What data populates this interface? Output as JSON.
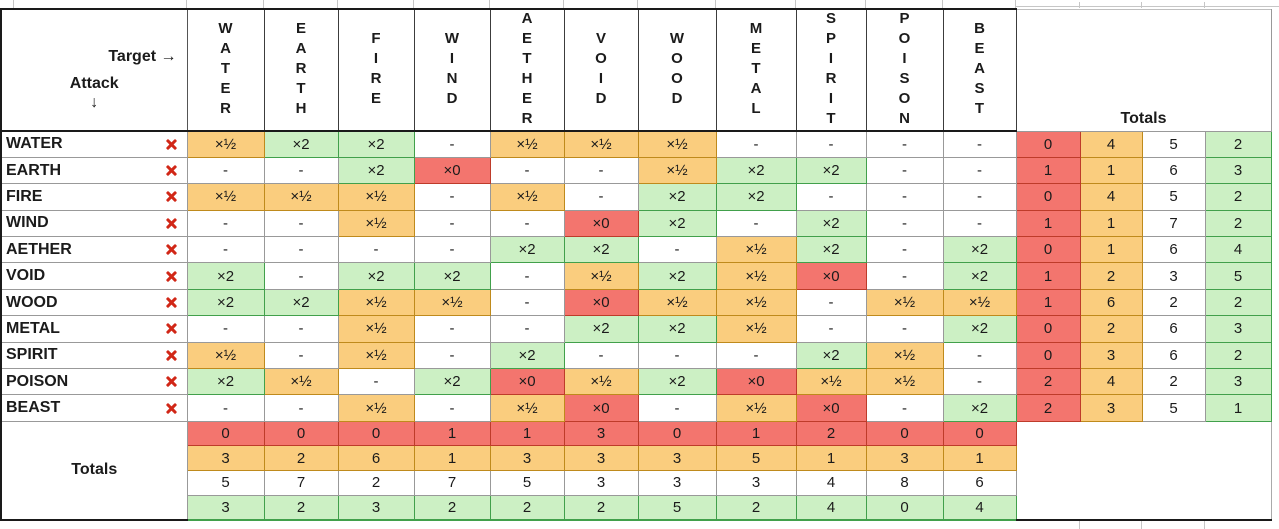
{
  "header": {
    "target_label": "Target →",
    "attack_label": "Attack",
    "attack_arrow": "↓",
    "columns": [
      "WATER",
      "EARTH",
      "FIRE",
      "WIND",
      "AETHER",
      "VOID",
      "WOOD",
      "METAL",
      "SPIRIT",
      "POISON",
      "BEAST"
    ],
    "totals_label": "Totals"
  },
  "value_colors": {
    "x0_fill": "#f3756e",
    "xhalf_fill": "#facd7e",
    "neutral_fill": "#ffffff",
    "x2_fill": "#ccf0c4",
    "remove_icon_color": "#d12717"
  },
  "totals_column_colors": [
    "#f3756e",
    "#facd7e",
    "#ffffff",
    "#ccf0c4"
  ],
  "matrix": {
    "rows": [
      {
        "attack": "WATER",
        "remove_icon": "x",
        "cells": [
          "×½",
          "×2",
          "×2",
          "-",
          "×½",
          "×½",
          "×½",
          "-",
          "-",
          "-",
          "-"
        ],
        "totals": [
          0,
          4,
          5,
          2
        ]
      },
      {
        "attack": "EARTH",
        "remove_icon": "x",
        "cells": [
          "-",
          "-",
          "×2",
          "×0",
          "-",
          "-",
          "×½",
          "×2",
          "×2",
          "-",
          "-"
        ],
        "totals": [
          1,
          1,
          6,
          3
        ]
      },
      {
        "attack": "FIRE",
        "remove_icon": "x",
        "cells": [
          "×½",
          "×½",
          "×½",
          "-",
          "×½",
          "-",
          "×2",
          "×2",
          "-",
          "-",
          "-"
        ],
        "totals": [
          0,
          4,
          5,
          2
        ]
      },
      {
        "attack": "WIND",
        "remove_icon": "x",
        "cells": [
          "-",
          "-",
          "×½",
          "-",
          "-",
          "×0",
          "×2",
          "-",
          "×2",
          "-",
          "-"
        ],
        "totals": [
          1,
          1,
          7,
          2
        ]
      },
      {
        "attack": "AETHER",
        "remove_icon": "x",
        "cells": [
          "-",
          "-",
          "-",
          "-",
          "×2",
          "×2",
          "-",
          "×½",
          "×2",
          "-",
          "×2"
        ],
        "totals": [
          0,
          1,
          6,
          4
        ]
      },
      {
        "attack": "VOID",
        "remove_icon": "x",
        "cells": [
          "×2",
          "-",
          "×2",
          "×2",
          "-",
          "×½",
          "×2",
          "×½",
          "×0",
          "-",
          "×2"
        ],
        "totals": [
          1,
          2,
          3,
          5
        ]
      },
      {
        "attack": "WOOD",
        "remove_icon": "x",
        "cells": [
          "×2",
          "×2",
          "×½",
          "×½",
          "-",
          "×0",
          "×½",
          "×½",
          "-",
          "×½",
          "×½"
        ],
        "totals": [
          1,
          6,
          2,
          2
        ]
      },
      {
        "attack": "METAL",
        "remove_icon": "x",
        "cells": [
          "-",
          "-",
          "×½",
          "-",
          "-",
          "×2",
          "×2",
          "×½",
          "-",
          "-",
          "×2"
        ],
        "totals": [
          0,
          2,
          6,
          3
        ]
      },
      {
        "attack": "SPIRIT",
        "remove_icon": "x",
        "cells": [
          "×½",
          "-",
          "×½",
          "-",
          "×2",
          "-",
          "-",
          "-",
          "×2",
          "×½",
          "-"
        ],
        "totals": [
          0,
          3,
          6,
          2
        ]
      },
      {
        "attack": "POISON",
        "remove_icon": "x",
        "cells": [
          "×2",
          "×½",
          "-",
          "×2",
          "×0",
          "×½",
          "×2",
          "×0",
          "×½",
          "×½",
          "-"
        ],
        "totals": [
          2,
          4,
          2,
          3
        ]
      },
      {
        "attack": "BEAST",
        "remove_icon": "x",
        "cells": [
          "-",
          "-",
          "×½",
          "-",
          "×½",
          "×0",
          "-",
          "×½",
          "×0",
          "-",
          "×2"
        ],
        "totals": [
          2,
          3,
          5,
          1
        ]
      }
    ]
  },
  "bottom": {
    "label": "Totals",
    "rows": [
      [
        0,
        0,
        0,
        1,
        1,
        3,
        0,
        1,
        2,
        0,
        0
      ],
      [
        3,
        2,
        6,
        1,
        3,
        3,
        3,
        5,
        1,
        3,
        1
      ],
      [
        5,
        7,
        2,
        7,
        5,
        3,
        3,
        3,
        4,
        8,
        6
      ],
      [
        3,
        2,
        3,
        2,
        2,
        2,
        5,
        2,
        4,
        0,
        4
      ]
    ]
  }
}
